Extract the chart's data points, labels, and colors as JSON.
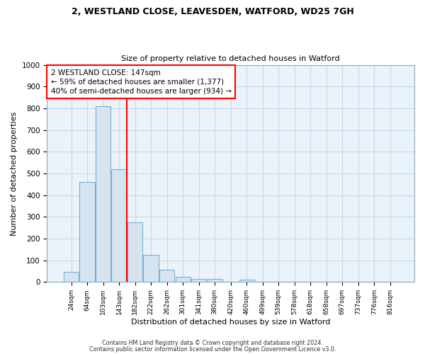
{
  "title1": "2, WESTLAND CLOSE, LEAVESDEN, WATFORD, WD25 7GH",
  "title2": "Size of property relative to detached houses in Watford",
  "xlabel": "Distribution of detached houses by size in Watford",
  "ylabel": "Number of detached properties",
  "categories": [
    "24sqm",
    "64sqm",
    "103sqm",
    "143sqm",
    "182sqm",
    "222sqm",
    "262sqm",
    "301sqm",
    "341sqm",
    "380sqm",
    "420sqm",
    "460sqm",
    "499sqm",
    "539sqm",
    "578sqm",
    "618sqm",
    "658sqm",
    "697sqm",
    "737sqm",
    "776sqm",
    "816sqm"
  ],
  "values": [
    47,
    460,
    810,
    520,
    275,
    125,
    57,
    25,
    15,
    15,
    0,
    10,
    0,
    0,
    0,
    0,
    0,
    0,
    0,
    0,
    0
  ],
  "bar_color": "#d6e4f0",
  "bar_edge_color": "#7aafd4",
  "grid_color": "#c8d8e8",
  "bg_color": "#ffffff",
  "plot_bg_color": "#eaf2fa",
  "red_line_x": 3.5,
  "annotation_text": "2 WESTLAND CLOSE: 147sqm\n← 59% of detached houses are smaller (1,377)\n40% of semi-detached houses are larger (934) →",
  "annotation_box_color": "white",
  "annotation_box_edge": "red",
  "footer1": "Contains HM Land Registry data © Crown copyright and database right 2024.",
  "footer2": "Contains public sector information licensed under the Open Government Licence v3.0.",
  "ylim": [
    0,
    1000
  ],
  "yticks": [
    0,
    100,
    200,
    300,
    400,
    500,
    600,
    700,
    800,
    900,
    1000
  ]
}
